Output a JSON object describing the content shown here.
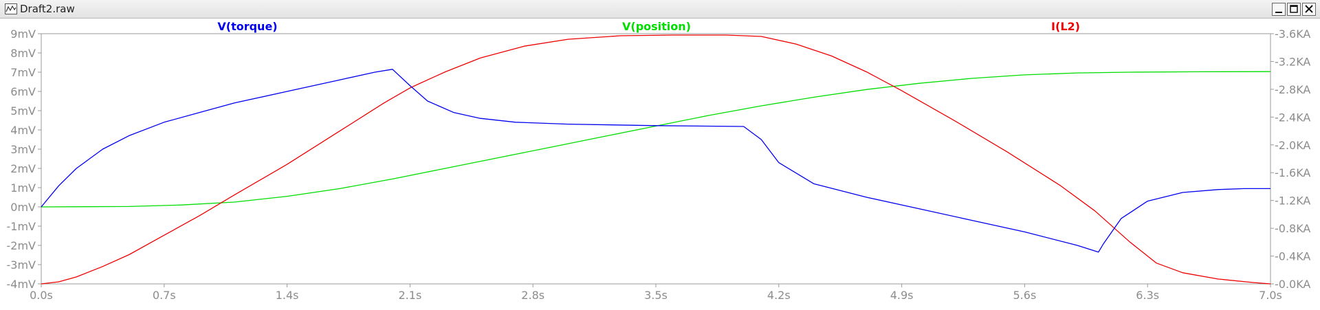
{
  "window": {
    "title": "Draft2.raw"
  },
  "chart_data": {
    "type": "line",
    "x_range": [
      0.0,
      7.0
    ],
    "x_ticks": [
      "0.0s",
      "0.7s",
      "1.4s",
      "2.1s",
      "2.8s",
      "3.5s",
      "4.2s",
      "4.9s",
      "5.6s",
      "6.3s",
      "7.0s"
    ],
    "y_left_range": [
      -4,
      9
    ],
    "y_left_ticks": [
      "9mV",
      "8mV",
      "7mV",
      "6mV",
      "5mV",
      "4mV",
      "3mV",
      "2mV",
      "1mV",
      "0mV",
      "-1mV",
      "-2mV",
      "-3mV",
      "-4mV"
    ],
    "y_right_range": [
      0.0,
      3.6
    ],
    "y_right_ticks": [
      "3.6KA",
      "3.2KA",
      "2.8KA",
      "2.4KA",
      "2.0KA",
      "1.6KA",
      "1.2KA",
      "0.8KA",
      "0.4KA",
      "0.0KA"
    ],
    "series": [
      {
        "name": "V(torque)",
        "axis": "left",
        "color": "#0000ee",
        "points": [
          [
            0,
            0
          ],
          [
            0.1,
            1.1
          ],
          [
            0.2,
            2.0
          ],
          [
            0.35,
            3.0
          ],
          [
            0.5,
            3.7
          ],
          [
            0.7,
            4.4
          ],
          [
            0.9,
            4.9
          ],
          [
            1.1,
            5.4
          ],
          [
            1.4,
            6.0
          ],
          [
            1.7,
            6.6
          ],
          [
            1.9,
            7.0
          ],
          [
            2.0,
            7.15
          ],
          [
            2.1,
            6.3
          ],
          [
            2.2,
            5.5
          ],
          [
            2.35,
            4.9
          ],
          [
            2.5,
            4.6
          ],
          [
            2.7,
            4.4
          ],
          [
            3.0,
            4.3
          ],
          [
            3.5,
            4.22
          ],
          [
            4.0,
            4.18
          ],
          [
            4.1,
            3.5
          ],
          [
            4.2,
            2.3
          ],
          [
            4.4,
            1.2
          ],
          [
            4.7,
            0.5
          ],
          [
            5.0,
            -0.1
          ],
          [
            5.3,
            -0.7
          ],
          [
            5.6,
            -1.3
          ],
          [
            5.9,
            -2.0
          ],
          [
            6.02,
            -2.35
          ],
          [
            6.05,
            -1.9
          ],
          [
            6.15,
            -0.6
          ],
          [
            6.3,
            0.3
          ],
          [
            6.5,
            0.75
          ],
          [
            6.7,
            0.9
          ],
          [
            6.85,
            0.95
          ],
          [
            7.0,
            0.95
          ]
        ]
      },
      {
        "name": "V(position)",
        "axis": "left",
        "color": "#00dd00",
        "points": [
          [
            0,
            0
          ],
          [
            0.5,
            0.02
          ],
          [
            0.8,
            0.1
          ],
          [
            1.1,
            0.25
          ],
          [
            1.4,
            0.55
          ],
          [
            1.7,
            0.95
          ],
          [
            2.0,
            1.45
          ],
          [
            2.3,
            2.0
          ],
          [
            2.6,
            2.55
          ],
          [
            2.9,
            3.1
          ],
          [
            3.2,
            3.65
          ],
          [
            3.5,
            4.2
          ],
          [
            3.8,
            4.75
          ],
          [
            4.1,
            5.25
          ],
          [
            4.4,
            5.7
          ],
          [
            4.7,
            6.1
          ],
          [
            5.0,
            6.42
          ],
          [
            5.3,
            6.68
          ],
          [
            5.6,
            6.86
          ],
          [
            5.9,
            6.96
          ],
          [
            6.2,
            7.0
          ],
          [
            6.6,
            7.02
          ],
          [
            7.0,
            7.03
          ]
        ]
      },
      {
        "name": "I(L2)",
        "axis": "right",
        "color": "#ee0000",
        "points": [
          [
            0,
            0.0
          ],
          [
            0.1,
            0.03
          ],
          [
            0.2,
            0.1
          ],
          [
            0.35,
            0.25
          ],
          [
            0.5,
            0.42
          ],
          [
            0.7,
            0.7
          ],
          [
            0.9,
            0.98
          ],
          [
            1.1,
            1.28
          ],
          [
            1.4,
            1.72
          ],
          [
            1.7,
            2.2
          ],
          [
            1.95,
            2.6
          ],
          [
            2.1,
            2.82
          ],
          [
            2.3,
            3.05
          ],
          [
            2.5,
            3.25
          ],
          [
            2.75,
            3.42
          ],
          [
            3.0,
            3.52
          ],
          [
            3.3,
            3.57
          ],
          [
            3.6,
            3.58
          ],
          [
            3.9,
            3.58
          ],
          [
            4.1,
            3.56
          ],
          [
            4.3,
            3.45
          ],
          [
            4.5,
            3.28
          ],
          [
            4.7,
            3.05
          ],
          [
            4.9,
            2.78
          ],
          [
            5.2,
            2.35
          ],
          [
            5.5,
            1.9
          ],
          [
            5.8,
            1.42
          ],
          [
            6.0,
            1.05
          ],
          [
            6.2,
            0.6
          ],
          [
            6.35,
            0.3
          ],
          [
            6.5,
            0.16
          ],
          [
            6.7,
            0.07
          ],
          [
            6.9,
            0.02
          ],
          [
            7.0,
            0.0
          ]
        ]
      }
    ]
  }
}
